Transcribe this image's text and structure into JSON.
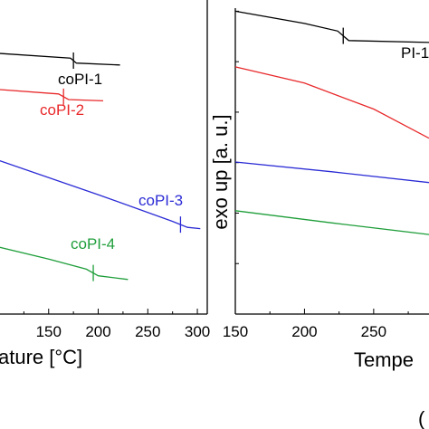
{
  "chart_data": [
    {
      "type": "line",
      "xlabel": "ature [°C]",
      "x_ticks": [
        "150",
        "200",
        "250",
        "300"
      ],
      "xlim": [
        100,
        310
      ],
      "ylim": [
        0,
        100
      ],
      "series": [
        {
          "name": "coPI-1",
          "color": "#000000",
          "tg": 175,
          "points": [
            [
              100,
              83.0
            ],
            [
              172,
              81.5
            ],
            [
              178,
              79.9
            ],
            [
              222,
              79.3
            ]
          ]
        },
        {
          "name": "coPI-2",
          "color": "#e8282a",
          "tg": 165,
          "points": [
            [
              100,
              71.5
            ],
            [
              160,
              70.1
            ],
            [
              170,
              68.3
            ],
            [
              205,
              67.9
            ]
          ]
        },
        {
          "name": "coPI-3",
          "color": "#2b2bd6",
          "tg": 283,
          "points": [
            [
              100,
              48.9
            ],
            [
              200,
              38.0
            ],
            [
              275,
              29.5
            ],
            [
              290,
              27.6
            ],
            [
              303,
              27.2
            ]
          ]
        },
        {
          "name": "coPI-4",
          "color": "#1f9e3a",
          "tg": 195,
          "points": [
            [
              100,
              21.3
            ],
            [
              150,
              17.5
            ],
            [
              188,
              14.3
            ],
            [
              200,
              12.2
            ],
            [
              230,
              11.0
            ]
          ]
        }
      ]
    },
    {
      "type": "line",
      "xlabel": "Tempe",
      "ylabel": "exo up [a. u.]",
      "x_ticks": [
        "150",
        "200",
        "250"
      ],
      "xlim": [
        150,
        290
      ],
      "ylim": [
        0,
        100
      ],
      "series": [
        {
          "name": "PI-1",
          "color": "#000000",
          "tg": 228,
          "points": [
            [
              150,
              99.0
            ],
            [
              200,
              95.0
            ],
            [
              224,
              92.5
            ],
            [
              232,
              89.4
            ],
            [
              290,
              88.8
            ]
          ]
        },
        {
          "name": "",
          "color": "#e8282a",
          "points": [
            [
              150,
              80.8
            ],
            [
              200,
              75.5
            ],
            [
              250,
              67.0
            ],
            [
              290,
              57.5
            ]
          ]
        },
        {
          "name": "",
          "color": "#2b2bd6",
          "points": [
            [
              150,
              49.7
            ],
            [
              220,
              46.5
            ],
            [
              290,
              43.0
            ]
          ]
        },
        {
          "name": "",
          "color": "#1f9e3a",
          "points": [
            [
              150,
              33.8
            ],
            [
              220,
              29.8
            ],
            [
              290,
              26.0
            ]
          ]
        }
      ],
      "series_label": "PI-1",
      "partial_char": "("
    }
  ]
}
